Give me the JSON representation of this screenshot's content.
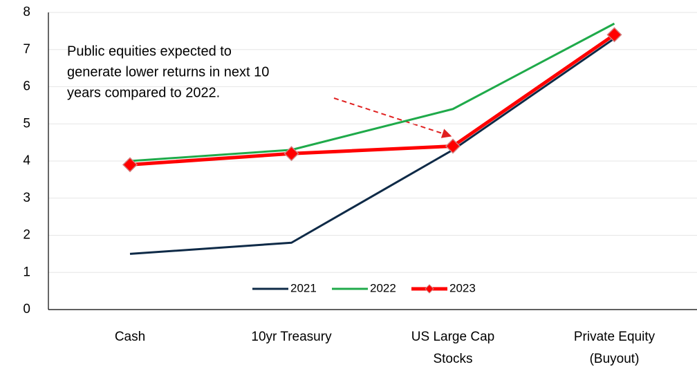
{
  "chart_data": {
    "type": "line",
    "categories": [
      "Cash",
      "10yr Treasury",
      "US Large Cap Stocks",
      "Private Equity (Buyout)"
    ],
    "series": [
      {
        "name": "2021",
        "color": "#0e2a47",
        "values": [
          1.5,
          1.8,
          4.3,
          7.3
        ]
      },
      {
        "name": "2022",
        "color": "#1faa4a",
        "values": [
          4.0,
          4.3,
          5.4,
          7.7
        ]
      },
      {
        "name": "2023",
        "color": "#ff0000",
        "values": [
          3.9,
          4.2,
          4.4,
          7.4
        ],
        "marker": "diamond"
      }
    ],
    "annotation": [
      "Public equities expected to",
      "generate lower returns in next 10",
      "years compared to 2022."
    ],
    "ylim": [
      0,
      8
    ],
    "yticks": [
      0,
      1,
      2,
      3,
      4,
      5,
      6,
      7,
      8
    ],
    "grid": true,
    "legend": "bottom"
  }
}
